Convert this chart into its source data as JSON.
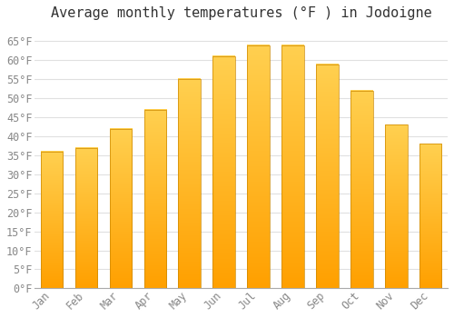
{
  "title": "Average monthly temperatures (°F ) in Jodoigne",
  "months": [
    "Jan",
    "Feb",
    "Mar",
    "Apr",
    "May",
    "Jun",
    "Jul",
    "Aug",
    "Sep",
    "Oct",
    "Nov",
    "Dec"
  ],
  "values": [
    36,
    37,
    42,
    47,
    55,
    61,
    64,
    64,
    59,
    52,
    43,
    38
  ],
  "bar_color_top": "#FFD050",
  "bar_color_bottom": "#FFA000",
  "bar_edge_color": "#CC8800",
  "background_color": "#ffffff",
  "grid_color": "#e0e0e0",
  "ylim": [
    0,
    68
  ],
  "yticks": [
    0,
    5,
    10,
    15,
    20,
    25,
    30,
    35,
    40,
    45,
    50,
    55,
    60,
    65
  ],
  "title_fontsize": 11,
  "tick_fontsize": 8.5,
  "bar_width": 0.65
}
